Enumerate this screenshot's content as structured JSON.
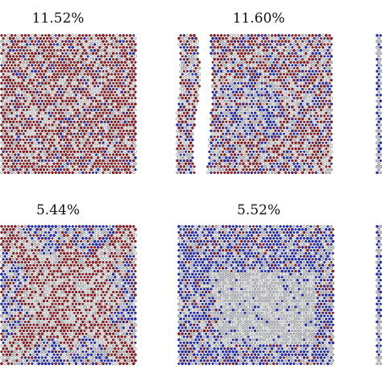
{
  "panels": [
    {
      "label": "11.52%",
      "pattern": "red-dominant"
    },
    {
      "label": "11.60%",
      "pattern": "fractured-mixed"
    },
    {
      "label": "5.44%",
      "pattern": "mixed-blue-red"
    },
    {
      "label": "5.52%",
      "pattern": "blue-grey-domains"
    }
  ],
  "colors": {
    "red": "#a3171f",
    "blue": "#1f2bd6",
    "grey": "#c8ccd6",
    "white": "#ffffff"
  }
}
